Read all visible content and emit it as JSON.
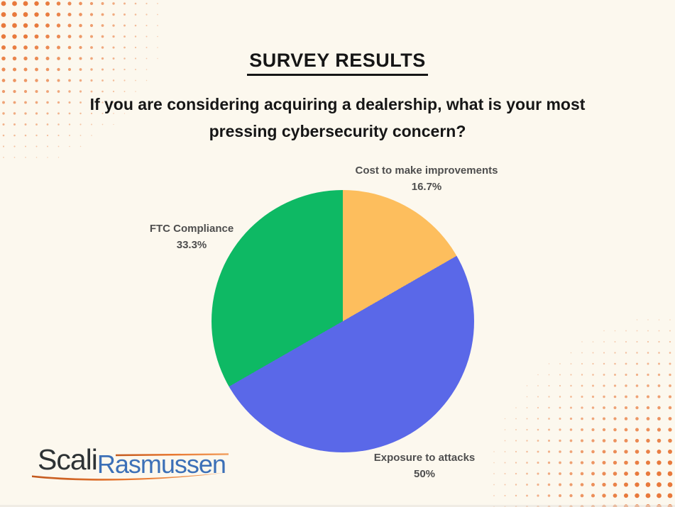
{
  "theme": {
    "background": "#FCF8EE",
    "text_dark": "#161616",
    "label_gray": "#4E4E4E",
    "logo_dark": "#2D3234",
    "logo_blue": "#3C70B7",
    "accent_orange": "#E8772F"
  },
  "page": {
    "title": "SURVEY RESULTS",
    "question_line1": "If you are considering acquiring a dealership, what is your most",
    "question_line2": "pressing cybersecurity concern?"
  },
  "chart_data": {
    "type": "pie",
    "title": "If you are considering acquiring a dealership, what is your most pressing cybersecurity concern?",
    "start_angle_deg": 0,
    "direction": "clockwise",
    "labels_position": "outside",
    "legend": "none",
    "slices": [
      {
        "label": "Cost to make improvements",
        "value": 16.7,
        "display": "16.7%",
        "color": "#FDBE5D"
      },
      {
        "label": "Exposure to attacks",
        "value": 50,
        "display": "50%",
        "color": "#5A68E8"
      },
      {
        "label": "FTC Compliance",
        "value": 33.3,
        "display": "33.3%",
        "color": "#0EB964"
      }
    ]
  },
  "logo": {
    "part1": "Scali",
    "part2": "Rasmussen"
  },
  "decor": {
    "dot_color": "#E8793C"
  }
}
